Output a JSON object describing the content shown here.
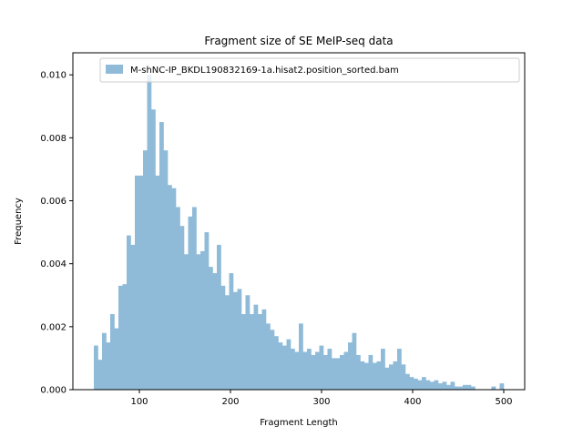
{
  "chart_data": {
    "type": "bar",
    "title": "Fragment size of SE MeIP-seq data",
    "xlabel": "Fragment Length",
    "ylabel": "Frequency",
    "xlim": [
      27,
      523
    ],
    "ylim": [
      0.0,
      0.0107
    ],
    "x_ticks": [
      100,
      200,
      300,
      400,
      500
    ],
    "y_ticks": [
      0.0,
      0.002,
      0.004,
      0.006,
      0.008,
      0.01
    ],
    "x_tick_labels": [
      "100",
      "200",
      "300",
      "400",
      "500"
    ],
    "y_tick_labels": [
      "0.000",
      "0.002",
      "0.004",
      "0.006",
      "0.008",
      "0.010"
    ],
    "bar_color": "#8fbbd9",
    "grid": false,
    "legend_placement": "upper right",
    "series": [
      {
        "name": "M-shNC-IP_BKDL190832169-1a.hisat2.position_sorted.bam",
        "bin_start": 50,
        "bin_width": 4.5,
        "values": [
          0.0014,
          0.00095,
          0.0018,
          0.0015,
          0.0024,
          0.00195,
          0.0033,
          0.00335,
          0.0049,
          0.0046,
          0.0068,
          0.0068,
          0.0076,
          0.01,
          0.0089,
          0.0068,
          0.0085,
          0.0076,
          0.0065,
          0.0064,
          0.0058,
          0.0052,
          0.0043,
          0.0055,
          0.0058,
          0.0043,
          0.0044,
          0.005,
          0.0039,
          0.0037,
          0.0046,
          0.0033,
          0.003,
          0.0037,
          0.0031,
          0.0032,
          0.0024,
          0.003,
          0.0024,
          0.0027,
          0.0024,
          0.00255,
          0.0021,
          0.0019,
          0.0017,
          0.0015,
          0.0014,
          0.0016,
          0.0013,
          0.0012,
          0.0021,
          0.0012,
          0.0013,
          0.0011,
          0.0012,
          0.0014,
          0.0011,
          0.0013,
          0.001,
          0.001,
          0.0011,
          0.0012,
          0.0015,
          0.0018,
          0.0011,
          0.0009,
          0.00085,
          0.0011,
          0.00085,
          0.0009,
          0.0013,
          0.0007,
          0.0008,
          0.0009,
          0.0013,
          0.0008,
          0.0005,
          0.0004,
          0.00035,
          0.0003,
          0.0004,
          0.0003,
          0.00025,
          0.0003,
          0.0002,
          0.00025,
          0.00015,
          0.00025,
          0.0001,
          0.0001,
          0.00015,
          0.00015,
          0.0001,
          0.0,
          0.0,
          0.0,
          0.0,
          0.0001,
          0.0,
          0.0002
        ]
      }
    ]
  }
}
